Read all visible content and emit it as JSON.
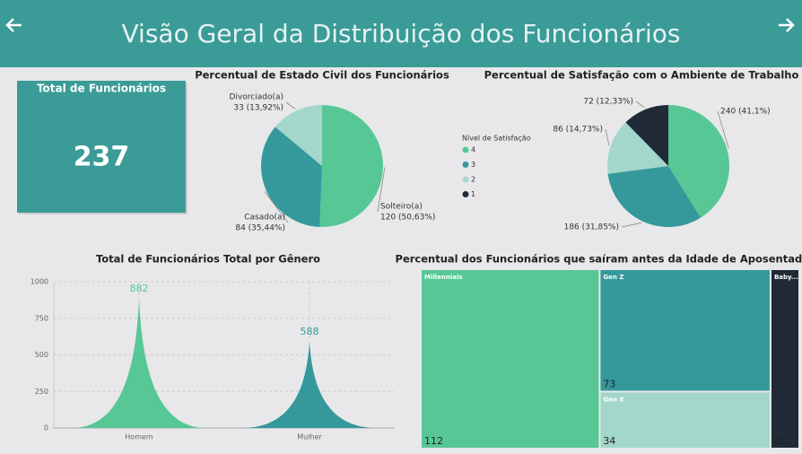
{
  "header": {
    "title": "Visão Geral da Distribuição dos Funcionários"
  },
  "kpi": {
    "title": "Total de Funcionários",
    "value": 237
  },
  "chart_data": [
    {
      "type": "pie",
      "title": "Percentual de Estado Civil dos Funcionários",
      "categories": [
        "Solteiro(a)",
        "Casado(a)",
        "Divorciado(a)"
      ],
      "values": [
        120,
        84,
        33
      ],
      "value_labels": [
        "120 (50,63%)",
        "84 (35,44%)",
        "33 (13,92%)"
      ],
      "colors": [
        "#57c795",
        "#35999b",
        "#a3d7cb"
      ]
    },
    {
      "type": "pie",
      "title": "Percentual de Satisfação com o Ambiente de Trabalho",
      "legend_title": "Nível de Satisfação",
      "categories": [
        "4",
        "3",
        "2",
        "1"
      ],
      "values": [
        240,
        186,
        86,
        72
      ],
      "value_labels": [
        "240 (41,1%)",
        "186 (31,85%)",
        "86 (14,73%)",
        "72 (12,33%)"
      ],
      "colors": [
        "#57c795",
        "#35999b",
        "#a3d7cb",
        "#1f2a36"
      ]
    },
    {
      "type": "spike",
      "title": "Total de Funcionários Total por Gênero",
      "categories": [
        "Homem",
        "Mulher"
      ],
      "values": [
        882,
        588
      ],
      "colors": [
        "#57c795",
        "#35999b"
      ],
      "ylim": [
        0,
        1000
      ],
      "yticks": [
        0,
        250,
        500,
        750,
        1000
      ],
      "grid": true
    },
    {
      "type": "treemap",
      "title": "Percentual dos Funcionários que saíram antes da Idade de Aposentadoria",
      "categories": [
        "Millennials",
        "Gen Z",
        "Gen X",
        "Baby..."
      ],
      "values": [
        112,
        73,
        34,
        18
      ],
      "colors": [
        "#57c795",
        "#35999b",
        "#a3d7cb",
        "#1f2a36"
      ]
    }
  ]
}
